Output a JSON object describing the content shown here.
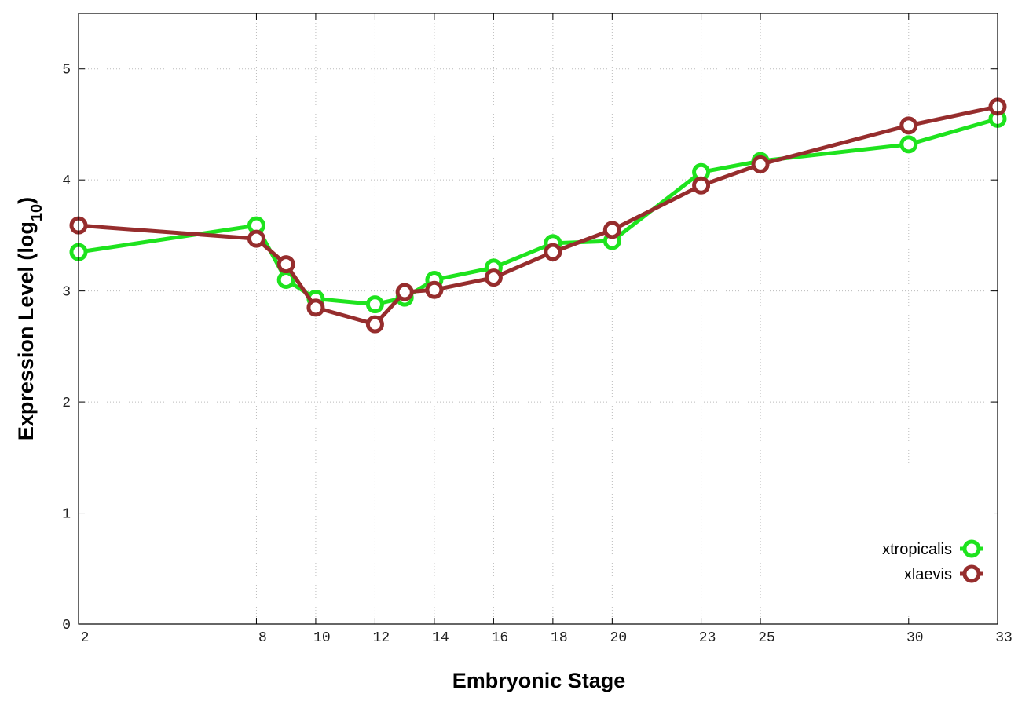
{
  "chart_data": {
    "type": "line",
    "x_label": "Embryonic Stage",
    "y_label": {
      "text": "Expression Level (log",
      "subscript": "10",
      "suffix": ")"
    },
    "x": [
      2,
      8,
      9,
      10,
      12,
      13,
      14,
      16,
      18,
      20,
      23,
      25,
      30,
      33
    ],
    "series": [
      {
        "name": "xtropicalis",
        "color": "#1ee31e",
        "values": [
          3.35,
          3.59,
          3.1,
          2.93,
          2.88,
          2.94,
          3.1,
          3.21,
          3.43,
          3.45,
          4.07,
          4.17,
          4.32,
          4.55
        ]
      },
      {
        "name": "xlaevis",
        "color": "#962d2d",
        "values": [
          3.59,
          3.47,
          3.24,
          2.85,
          2.7,
          2.99,
          3.01,
          3.12,
          3.35,
          3.55,
          3.95,
          4.14,
          4.49,
          4.66
        ]
      }
    ],
    "xlim": [
      2,
      33
    ],
    "xticks": [
      2,
      8,
      10,
      12,
      14,
      16,
      18,
      20,
      23,
      25,
      30,
      33
    ],
    "ylim": [
      0,
      5.5
    ],
    "yticks": [
      0,
      1,
      2,
      3,
      4,
      5
    ],
    "grid": true,
    "legend": "lower right"
  }
}
